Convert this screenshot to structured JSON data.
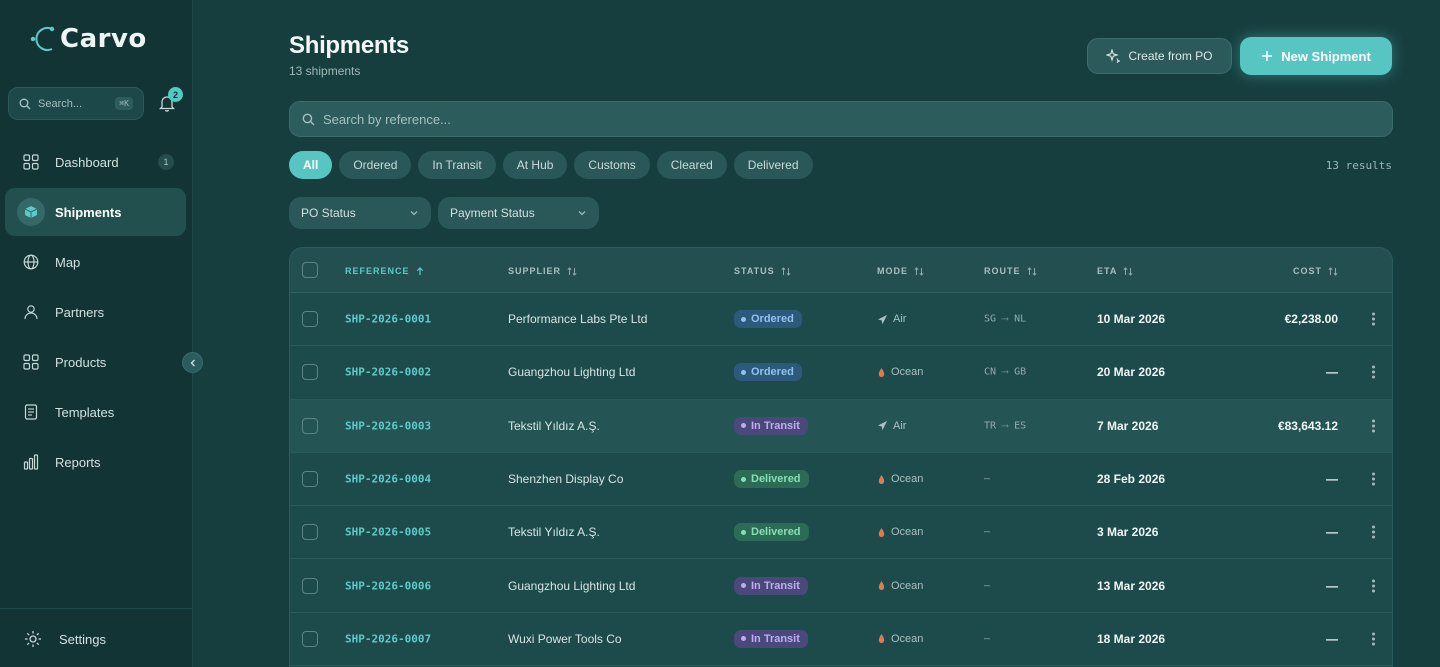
{
  "app": {
    "logo_text": "Carvo"
  },
  "sidebar": {
    "search_placeholder": "Search...",
    "search_shortcut": "⌘K",
    "notifications_count": "2",
    "items": [
      {
        "label": "Dashboard",
        "icon": "grid-icon",
        "badge": "1"
      },
      {
        "label": "Shipments",
        "icon": "cube-icon",
        "active": true
      },
      {
        "label": "Map",
        "icon": "globe-icon"
      },
      {
        "label": "Partners",
        "icon": "user-icon"
      },
      {
        "label": "Products",
        "icon": "grid-icon"
      },
      {
        "label": "Templates",
        "icon": "document-icon"
      },
      {
        "label": "Reports",
        "icon": "bar-chart-icon"
      }
    ],
    "settings_label": "Settings"
  },
  "header": {
    "title": "Shipments",
    "subtitle": "13 shipments",
    "create_from_po_label": "Create from PO",
    "new_shipment_label": "New Shipment"
  },
  "search": {
    "placeholder": "Search by reference..."
  },
  "filters": {
    "tabs": [
      "All",
      "Ordered",
      "In Transit",
      "At Hub",
      "Customs",
      "Cleared",
      "Delivered"
    ],
    "active": "All",
    "results_text": "13 results",
    "po_status_label": "PO Status",
    "payment_status_label": "Payment Status"
  },
  "table": {
    "columns": {
      "reference": "REFERENCE",
      "supplier": "SUPPLIER",
      "status": "STATUS",
      "mode": "MODE",
      "route": "ROUTE",
      "eta": "ETA",
      "cost": "COST"
    },
    "rows": [
      {
        "reference": "SHP-2026-0001",
        "supplier": "Performance Labs Pte Ltd",
        "status": "Ordered",
        "mode": "Air",
        "route_from": "SG",
        "route_to": "NL",
        "eta": "10 Mar 2026",
        "cost": "€2,238.00"
      },
      {
        "reference": "SHP-2026-0002",
        "supplier": "Guangzhou Lighting Ltd",
        "status": "Ordered",
        "mode": "Ocean",
        "route_from": "CN",
        "route_to": "GB",
        "eta": "20 Mar 2026",
        "cost": "—"
      },
      {
        "reference": "SHP-2026-0003",
        "supplier": "Tekstil Yıldız A.Ş.",
        "status": "In Transit",
        "mode": "Air",
        "route_from": "TR",
        "route_to": "ES",
        "eta": "7 Mar 2026",
        "cost": "€83,643.12"
      },
      {
        "reference": "SHP-2026-0004",
        "supplier": "Shenzhen Display Co",
        "status": "Delivered",
        "mode": "Ocean",
        "route_from": "—",
        "route_to": "",
        "eta": "28 Feb 2026",
        "cost": "—"
      },
      {
        "reference": "SHP-2026-0005",
        "supplier": "Tekstil Yıldız A.Ş.",
        "status": "Delivered",
        "mode": "Ocean",
        "route_from": "—",
        "route_to": "",
        "eta": "3 Mar 2026",
        "cost": "—"
      },
      {
        "reference": "SHP-2026-0006",
        "supplier": "Guangzhou Lighting Ltd",
        "status": "In Transit",
        "mode": "Ocean",
        "route_from": "—",
        "route_to": "",
        "eta": "13 Mar 2026",
        "cost": "—"
      },
      {
        "reference": "SHP-2026-0007",
        "supplier": "Wuxi Power Tools Co",
        "status": "In Transit",
        "mode": "Ocean",
        "route_from": "—",
        "route_to": "",
        "eta": "18 Mar 2026",
        "cost": "—"
      }
    ]
  },
  "colors": {
    "accent": "#57c6c3",
    "background": "#173e3f",
    "sidebar": "#133435"
  }
}
